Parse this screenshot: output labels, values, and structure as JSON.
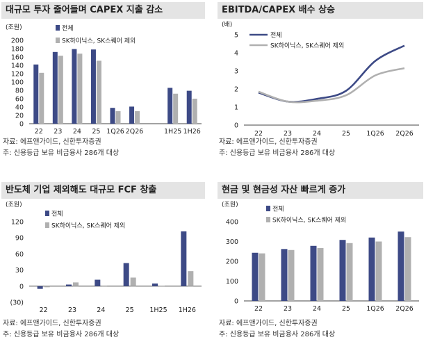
{
  "colors": {
    "dark": "#3d4a86",
    "gray": "#b0b0b0",
    "titlebar": "#e4e4e4"
  },
  "panels": [
    {
      "title": "대규모 투자 줄어들며 CAPEX 지출 감소",
      "source": "자료: 에프앤가이드, 신한투자증권",
      "note": "주: 신용등급 보유 비금융사 286개 대상",
      "chart_data": {
        "type": "bar",
        "unit": "(조원)",
        "ylim": [
          0,
          200
        ],
        "yticks": [
          "0",
          "20",
          "40",
          "60",
          "80",
          "100",
          "120",
          "140",
          "160",
          "180",
          "200"
        ],
        "categories": [
          "22",
          "23",
          "24",
          "25",
          "1Q26",
          "2Q26",
          "1H25",
          "1H26"
        ],
        "series": [
          {
            "name": "전체",
            "values": [
              142,
              172,
              179,
              178,
              38,
              41,
              86,
              79
            ]
          },
          {
            "name": "SK하이닉스, SK스퀘어 제외",
            "values": [
              122,
              163,
              168,
              151,
              30,
              30,
              72,
              60
            ]
          }
        ]
      }
    },
    {
      "title": "EBITDA/CAPEX 배수 상승",
      "source": "자료: 에프앤가이드, 신한투자증권",
      "note": "주: 신용등급 보유 비금융사 286개 대상",
      "chart_data": {
        "type": "line",
        "unit": "(배)",
        "ylim": [
          0,
          5
        ],
        "yticks": [
          "0",
          "1",
          "2",
          "3",
          "4",
          "5"
        ],
        "categories": [
          "22",
          "23",
          "24",
          "25",
          "1Q26",
          "2Q26"
        ],
        "series": [
          {
            "name": "전체",
            "values": [
              1.8,
              1.3,
              1.45,
              1.9,
              3.55,
              4.4
            ]
          },
          {
            "name": "SK하이닉스, SK스퀘어 제외",
            "values": [
              1.85,
              1.3,
              1.35,
              1.65,
              2.75,
              3.15
            ]
          }
        ]
      }
    },
    {
      "title": "반도체 기업 제외해도 대규모 FCF 창출",
      "source": "자료: 에프앤가이드, 신한투자증권",
      "note": "주: 신용등급 보유 비금융사 286개 대상",
      "chart_data": {
        "type": "bar",
        "unit": "(조원)",
        "ylim": [
          -30,
          120
        ],
        "yticks": [
          "(30)",
          "0",
          "30",
          "60",
          "90",
          "120"
        ],
        "categories": [
          "22",
          "23",
          "24",
          "25",
          "1H25",
          "1H26"
        ],
        "series": [
          {
            "name": "전체",
            "values": [
              -5,
              3,
              12,
              43,
              5,
              102
            ]
          },
          {
            "name": "SK하이닉스, SK스퀘어 제외",
            "values": [
              -2,
              7,
              0,
              16,
              1,
              28
            ]
          }
        ]
      }
    },
    {
      "title": "현금 및 현금성 자산 빠르게 증가",
      "source": "자료: 에프앤가이드, 신한투자증권",
      "note": "주: 신용등급 보유 비금융사 286개 대상",
      "chart_data": {
        "type": "bar",
        "unit": "(조원)",
        "ylim": [
          0,
          400
        ],
        "yticks": [
          "0",
          "100",
          "200",
          "300",
          "400"
        ],
        "categories": [
          "22",
          "23",
          "24",
          "25",
          "1Q26",
          "2Q26"
        ],
        "series": [
          {
            "name": "전체",
            "values": [
              243,
              262,
              278,
              308,
              320,
              350
            ]
          },
          {
            "name": "SK하이닉스, SK스퀘어 제외",
            "values": [
              240,
              257,
              267,
              292,
              300,
              322
            ]
          }
        ]
      }
    }
  ]
}
